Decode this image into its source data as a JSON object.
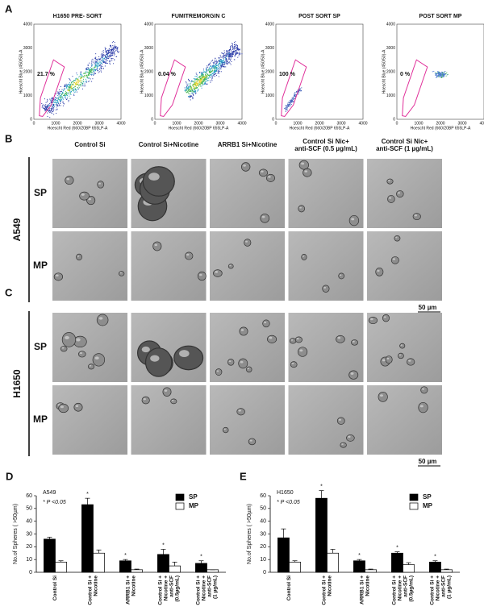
{
  "flow": {
    "label": "A",
    "panels": [
      {
        "title": "H1650 PRE- SORT",
        "gate_percent": "21.7 %"
      },
      {
        "title": "FUMITREMORGIN C",
        "gate_percent": "0.04 %"
      },
      {
        "title": "POST SORT SP",
        "gate_percent": "100 %"
      },
      {
        "title": "POST SORT MP",
        "gate_percent": "0 %"
      }
    ],
    "x_label": "Hoescht Red (660/20BP 655LP-A",
    "y_label": "Hoescht Blue (450/50)-A",
    "ticks": [
      0,
      1000,
      2000,
      3000,
      4000
    ]
  },
  "spheres": {
    "columns": [
      [
        "Control Si"
      ],
      [
        "Control Si+Nicotine"
      ],
      [
        "ARRB1 Si+Nicotine"
      ],
      [
        "Control Si Nic+",
        "anti-SCF (0.5 µg/mL)"
      ],
      [
        "Control Si Nic+",
        "anti-SCF (1 µg/mL)"
      ]
    ],
    "rows": [
      "SP",
      "MP"
    ],
    "panels": [
      {
        "label": "B",
        "cell_line": "A549"
      },
      {
        "label": "C",
        "cell_line": "H1650"
      }
    ],
    "scale_bar": "50 µm"
  },
  "chart_data": [
    {
      "type": "bar",
      "panel_label": "D",
      "subtitle": "A549",
      "note": "* P <0.05",
      "y_label": "No.of Spheres ( >50µm)",
      "categories": [
        [
          "Control Si"
        ],
        [
          "Control Si +",
          "Nicotine"
        ],
        [
          "ARRB1 Si +",
          "Nicotine"
        ],
        [
          "Control Si +",
          "Nicotine +",
          "anti-SCF",
          "(0.5µg/mL)"
        ],
        [
          "Control Si +",
          "Nicotine +",
          "anti-SCF",
          "(1 µg/mL)"
        ]
      ],
      "series": [
        {
          "name": "SP",
          "color": "#000000",
          "values": [
            26,
            53,
            9,
            14,
            7
          ],
          "errors": [
            1.5,
            5,
            1,
            4,
            2
          ]
        },
        {
          "name": "MP",
          "color": "#ffffff",
          "values": [
            8,
            15,
            2,
            5,
            2
          ],
          "errors": [
            1,
            2.5,
            0.5,
            3,
            0
          ]
        }
      ],
      "ylim": [
        0,
        60
      ],
      "yticks": [
        0,
        10,
        20,
        30,
        40,
        50,
        60
      ],
      "significant": [
        false,
        true,
        true,
        true,
        true
      ],
      "marker": "*",
      "legend": "upper right"
    },
    {
      "type": "bar",
      "panel_label": "E",
      "subtitle": "H1650",
      "note": "* P <0.05",
      "y_label": "No.of Spheres ( >50µm)",
      "categories": [
        [
          "Control Si"
        ],
        [
          "Control Si +",
          "Nicotine"
        ],
        [
          "ARRB1 Si +",
          "Nicotine"
        ],
        [
          "Control Si +",
          "Nicotine +",
          "anti-SCF",
          "(0.5µg/mL)"
        ],
        [
          "Control Si +",
          "Nicotine +",
          "anti-SCF",
          "(1 µg/mL)"
        ]
      ],
      "series": [
        {
          "name": "SP",
          "color": "#000000",
          "values": [
            27,
            58,
            9,
            15,
            8
          ],
          "errors": [
            7,
            6,
            1,
            1,
            1
          ]
        },
        {
          "name": "MP",
          "color": "#ffffff",
          "values": [
            8,
            15,
            2,
            6,
            2
          ],
          "errors": [
            1,
            3,
            0.5,
            1.5,
            0.5
          ]
        }
      ],
      "ylim": [
        0,
        60
      ],
      "yticks": [
        0,
        10,
        20,
        30,
        40,
        50,
        60
      ],
      "significant": [
        false,
        true,
        true,
        true,
        true
      ],
      "marker": "*",
      "legend": "upper right"
    }
  ]
}
